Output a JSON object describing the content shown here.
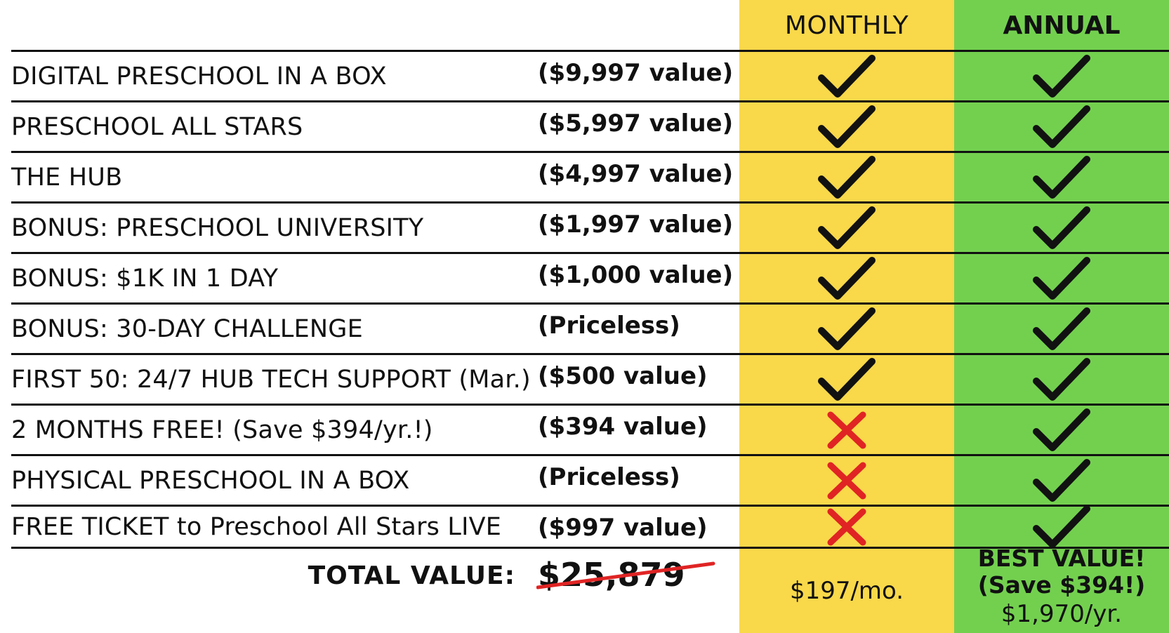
{
  "header": {
    "monthly": "MONTHLY",
    "annual": "ANNUAL"
  },
  "colors": {
    "monthly_bg": "#f9d84a",
    "annual_bg": "#73d04f",
    "cross": "#e02424",
    "check": "#111111",
    "strike": "#e02424"
  },
  "icons": {
    "included": "checkmark-icon",
    "not_included": "cross-icon"
  },
  "rows": [
    {
      "feature": "DIGITAL PRESCHOOL IN A BOX",
      "value": "($9,997 value)",
      "monthly": true,
      "annual": true
    },
    {
      "feature": "PRESCHOOL ALL STARS",
      "value": "($5,997 value)",
      "monthly": true,
      "annual": true
    },
    {
      "feature": "THE HUB",
      "value": "($4,997 value)",
      "monthly": true,
      "annual": true
    },
    {
      "feature": "BONUS: PRESCHOOL UNIVERSITY",
      "value": "($1,997 value)",
      "monthly": true,
      "annual": true
    },
    {
      "feature": "BONUS: $1K IN 1 DAY",
      "value": "($1,000 value)",
      "monthly": true,
      "annual": true
    },
    {
      "feature": "BONUS: 30-DAY CHALLENGE",
      "value": "(Priceless)",
      "monthly": true,
      "annual": true
    },
    {
      "feature": "FIRST 50: 24/7 HUB TECH SUPPORT (Mar.)",
      "value": "($500 value)",
      "monthly": true,
      "annual": true
    },
    {
      "feature": "2 MONTHS FREE! (Save $394/yr.!)",
      "value": "($394 value)",
      "monthly": false,
      "annual": true
    },
    {
      "feature": "PHYSICAL PRESCHOOL IN A BOX",
      "value": "(Priceless)",
      "monthly": false,
      "annual": true
    },
    {
      "feature": "FREE TICKET to Preschool All Stars LIVE",
      "value": "($997 value)",
      "monthly": false,
      "annual": true
    }
  ],
  "total": {
    "label": "TOTAL VALUE:",
    "amount": "$25,879"
  },
  "monthly_price": "$197/mo.",
  "annual": {
    "best_line1": "BEST VALUE!",
    "best_line2": "(Save $394!)",
    "price": "$1,970/yr."
  }
}
